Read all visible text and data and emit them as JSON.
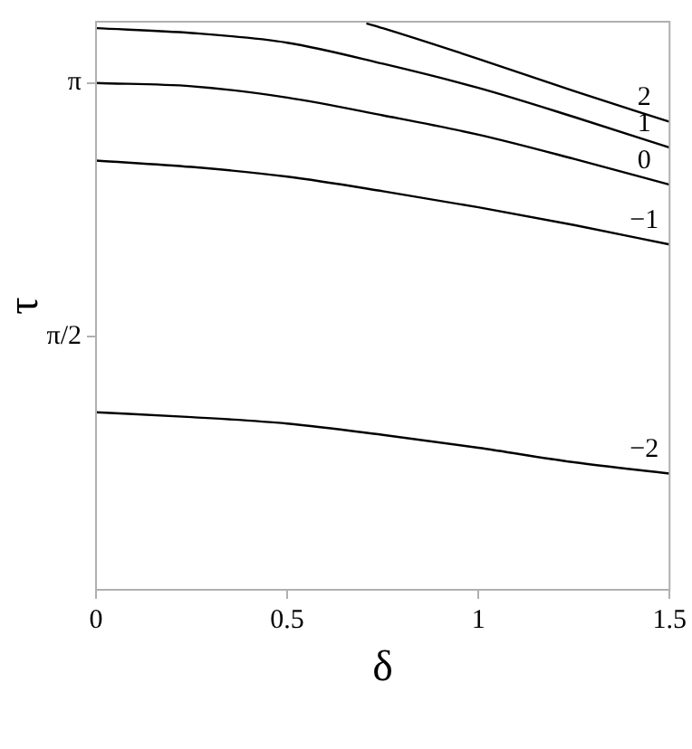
{
  "chart_data": {
    "type": "line",
    "xlabel": "δ",
    "ylabel": "τ",
    "xlim": [
      0,
      1.5
    ],
    "xticks": [
      0,
      0.5,
      1,
      1.5
    ],
    "ylim": [
      0,
      3.52
    ],
    "yticks": [
      {
        "value": 1.5708,
        "label": "π/2"
      },
      {
        "value": 3.14159,
        "label": "π"
      }
    ],
    "grid": false,
    "legend": false,
    "marker": "none",
    "line_style": "solid",
    "series": [
      {
        "name": "2",
        "color": "#000000",
        "x": [
          0.707,
          0.75,
          1,
          1.25,
          1.5
        ],
        "values": [
          3.51,
          3.48,
          3.29,
          3.09,
          2.9
        ]
      },
      {
        "name": "1",
        "color": "#000000",
        "x": [
          0,
          0.25,
          0.5,
          0.75,
          1,
          1.25,
          1.5
        ],
        "values": [
          3.48,
          3.45,
          3.39,
          3.26,
          3.11,
          2.93,
          2.74
        ]
      },
      {
        "name": "0",
        "color": "#000000",
        "x": [
          0,
          0.25,
          0.5,
          0.75,
          1,
          1.25,
          1.5
        ],
        "values": [
          3.14,
          3.12,
          3.05,
          2.94,
          2.82,
          2.67,
          2.51
        ]
      },
      {
        "name": "−1",
        "color": "#000000",
        "x": [
          0,
          0.25,
          0.5,
          0.75,
          1,
          1.25,
          1.5
        ],
        "values": [
          2.66,
          2.62,
          2.56,
          2.47,
          2.37,
          2.26,
          2.14
        ]
      },
      {
        "name": "−2",
        "color": "#000000",
        "x": [
          0,
          0.25,
          0.5,
          0.75,
          1,
          1.25,
          1.5
        ],
        "values": [
          1.1,
          1.07,
          1.03,
          0.96,
          0.88,
          0.79,
          0.72
        ]
      }
    ]
  }
}
